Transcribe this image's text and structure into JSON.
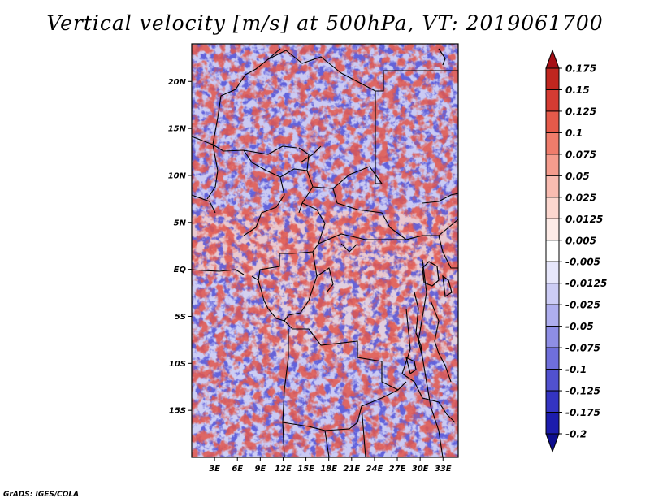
{
  "title": "Vertical velocity [m/s] at 500hPa, VT: 2019061700",
  "credit": "GrADS: IGES/COLA",
  "map": {
    "lat_labels": [
      "20N",
      "15N",
      "10N",
      "5N",
      "EQ",
      "5S",
      "10S",
      "15S"
    ],
    "lon_labels": [
      "3E",
      "6E",
      "9E",
      "12E",
      "15E",
      "18E",
      "21E",
      "24E",
      "27E",
      "30E",
      "33E"
    ],
    "lon_range": [
      0,
      35
    ],
    "lat_range": [
      -20,
      24
    ]
  },
  "colorbar": {
    "levels": [
      "0.175",
      "0.15",
      "0.125",
      "0.1",
      "0.075",
      "0.05",
      "0.025",
      "0.0125",
      "0.005",
      "-0.005",
      "-0.0125",
      "-0.025",
      "-0.05",
      "-0.075",
      "-0.1",
      "-0.125",
      "-0.175",
      "-0.2"
    ],
    "colors": [
      "#a50f15",
      "#c0261f",
      "#d43b32",
      "#e55a4a",
      "#ef7c6b",
      "#f59c8d",
      "#f9bcb1",
      "#fcd7cf",
      "#fdebe7",
      "#ffffff",
      "#e7e7fb",
      "#ccccf5",
      "#aeaeee",
      "#8e8ee5",
      "#6f6fdb",
      "#5151cf",
      "#3434c2",
      "#1c1cad",
      "#0d0d8f"
    ]
  }
}
